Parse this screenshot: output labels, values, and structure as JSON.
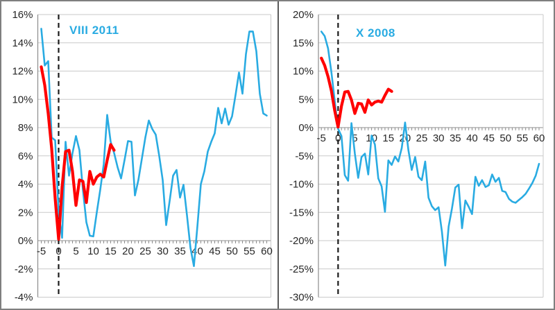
{
  "colors": {
    "blue_line": "#29ABE2",
    "red_line": "#FF0000",
    "gridline": "#C9C9C9",
    "axis": "#8C8C8C",
    "dashed_marker": "#1A1A1A",
    "label_text": "#262626",
    "frame_border": "#7F7F7F",
    "divider": "#595959"
  },
  "chart_data": [
    {
      "type": "line",
      "title": "VIII 2011",
      "xlim": [
        -5,
        60
      ],
      "ylim": [
        -4,
        16
      ],
      "grid": true,
      "legend": "none",
      "marker_vline_x": 0,
      "yticks": [
        {
          "value": 16,
          "label": "16%"
        },
        {
          "value": 14,
          "label": "14%"
        },
        {
          "value": 12,
          "label": "12%"
        },
        {
          "value": 10,
          "label": "10%"
        },
        {
          "value": 8,
          "label": "8%"
        },
        {
          "value": 6,
          "label": "6%"
        },
        {
          "value": 4,
          "label": "4%"
        },
        {
          "value": 2,
          "label": "2%"
        },
        {
          "value": 0,
          "label": "0%"
        },
        {
          "value": -2,
          "label": "-2%"
        },
        {
          "value": -4,
          "label": "-4%"
        }
      ],
      "xticks": [
        {
          "value": -5,
          "label": "-5"
        },
        {
          "value": 0,
          "label": "0"
        },
        {
          "value": 5,
          "label": "5"
        },
        {
          "value": 10,
          "label": "10"
        },
        {
          "value": 15,
          "label": "15"
        },
        {
          "value": 20,
          "label": "20"
        },
        {
          "value": 25,
          "label": "25"
        },
        {
          "value": 30,
          "label": "30"
        },
        {
          "value": 35,
          "label": "35"
        },
        {
          "value": 40,
          "label": "40"
        },
        {
          "value": 45,
          "label": "45"
        },
        {
          "value": 50,
          "label": "50"
        },
        {
          "value": 55,
          "label": "55"
        },
        {
          "value": 60,
          "label": "60"
        }
      ],
      "series": [
        {
          "name": "blue-episode",
          "color_key": "blue_line",
          "width": 2.6,
          "x_start": -5,
          "values": [
            15.0,
            12.4,
            12.7,
            7.3,
            7.1,
            2.0,
            0.2,
            7.0,
            4.6,
            6.2,
            7.4,
            6.4,
            3.6,
            1.3,
            0.35,
            0.3,
            2.0,
            3.6,
            5.4,
            8.9,
            7.0,
            6.2,
            5.2,
            4.4,
            5.7,
            7.05,
            7.0,
            3.2,
            4.3,
            5.8,
            7.3,
            8.5,
            7.9,
            7.5,
            6.0,
            4.3,
            1.1,
            2.8,
            4.6,
            5.0,
            3.05,
            3.95,
            1.8,
            -0.5,
            -1.8,
            1.0,
            4.0,
            4.9,
            6.3,
            7.0,
            7.6,
            9.4,
            8.3,
            9.35,
            8.2,
            8.8,
            10.3,
            11.9,
            10.4,
            13.2,
            14.8,
            14.8,
            13.4,
            10.4,
            9.0,
            8.85
          ]
        },
        {
          "name": "red-current",
          "color_key": "red_line",
          "width": 4.2,
          "x_start": -5,
          "values": [
            12.3,
            11.0,
            9.0,
            6.5,
            3.0,
            0.1,
            3.8,
            6.3,
            6.4,
            4.9,
            2.5,
            4.3,
            4.2,
            2.7,
            4.9,
            4.0,
            4.5,
            4.7,
            4.5,
            5.7,
            6.8,
            6.4
          ]
        }
      ]
    },
    {
      "type": "line",
      "title": "X 2008",
      "xlim": [
        -5,
        60
      ],
      "ylim": [
        -30,
        20
      ],
      "grid": true,
      "legend": "none",
      "marker_vline_x": 0,
      "yticks": [
        {
          "value": 20,
          "label": "20%"
        },
        {
          "value": 15,
          "label": "15%"
        },
        {
          "value": 10,
          "label": "10%"
        },
        {
          "value": 5,
          "label": "5%"
        },
        {
          "value": 0,
          "label": "0%"
        },
        {
          "value": -5,
          "label": "-5%"
        },
        {
          "value": -10,
          "label": "-10%"
        },
        {
          "value": -15,
          "label": "-15%"
        },
        {
          "value": -20,
          "label": "-20%"
        },
        {
          "value": -25,
          "label": "-25%"
        },
        {
          "value": -30,
          "label": "-30%"
        }
      ],
      "xticks": [
        {
          "value": -5,
          "label": "-5"
        },
        {
          "value": 0,
          "label": "0"
        },
        {
          "value": 5,
          "label": "5"
        },
        {
          "value": 10,
          "label": "10"
        },
        {
          "value": 15,
          "label": "15"
        },
        {
          "value": 20,
          "label": "20"
        },
        {
          "value": 25,
          "label": "25"
        },
        {
          "value": 30,
          "label": "30"
        },
        {
          "value": 35,
          "label": "35"
        },
        {
          "value": 40,
          "label": "40"
        },
        {
          "value": 45,
          "label": "45"
        },
        {
          "value": 50,
          "label": "50"
        },
        {
          "value": 55,
          "label": "55"
        },
        {
          "value": 60,
          "label": "60"
        }
      ],
      "series": [
        {
          "name": "blue-episode",
          "color_key": "blue_line",
          "width": 2.6,
          "x_start": -5,
          "values": [
            17.0,
            16.2,
            14.0,
            9.8,
            4.7,
            -0.2,
            -1.5,
            -8.4,
            -9.4,
            0.8,
            -4.6,
            -8.9,
            -5.2,
            -4.6,
            -8.3,
            -1.4,
            -3.0,
            -9.0,
            -10.4,
            -14.9,
            -5.8,
            -6.6,
            -5.1,
            -6.0,
            -3.6,
            0.9,
            -4.0,
            -7.5,
            -5.2,
            -8.7,
            -9.3,
            -6.0,
            -12.4,
            -13.9,
            -14.6,
            -14.1,
            -18.4,
            -24.4,
            -17.5,
            -14.3,
            -10.6,
            -10.1,
            -17.8,
            -12.9,
            -14.0,
            -15.3,
            -8.7,
            -10.3,
            -9.3,
            -10.5,
            -10.2,
            -8.3,
            -9.6,
            -8.9,
            -11.2,
            -11.4,
            -12.6,
            -13.1,
            -13.3,
            -12.8,
            -12.3,
            -11.7,
            -10.8,
            -9.8,
            -8.5,
            -6.4
          ]
        },
        {
          "name": "red-current",
          "color_key": "red_line",
          "width": 4.2,
          "x_start": -5,
          "values": [
            12.3,
            11.0,
            9.0,
            6.5,
            3.0,
            0.1,
            3.8,
            6.3,
            6.4,
            4.9,
            2.5,
            4.3,
            4.2,
            2.7,
            4.9,
            4.0,
            4.5,
            4.7,
            4.5,
            5.7,
            6.8,
            6.4
          ]
        }
      ]
    }
  ]
}
